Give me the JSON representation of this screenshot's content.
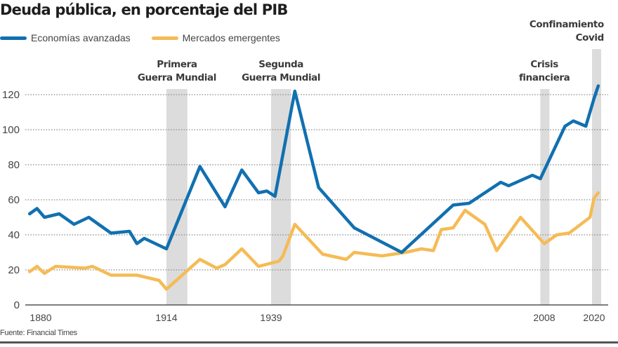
{
  "chart_data": {
    "type": "line",
    "title": "Deuda pública, en porcentaje del PIB",
    "xlabel": "",
    "ylabel": "",
    "ylim": [
      0,
      125
    ],
    "yticks": [
      0,
      20,
      40,
      60,
      80,
      100,
      120
    ],
    "xticks": [
      1880,
      1914,
      1939,
      2008,
      2020
    ],
    "grid": "horizontal dotted",
    "legend_position": "top-left",
    "colors": {
      "Economías avanzadas": "#1170b0",
      "Mercados emergentes": "#f5bb55",
      "band": "#dcdcdc"
    },
    "series": [
      {
        "name": "Economías avanzadas",
        "color": "#1170b0",
        "points": [
          [
            1877,
            52
          ],
          [
            1879,
            55
          ],
          [
            1881,
            50
          ],
          [
            1885,
            52
          ],
          [
            1889,
            46
          ],
          [
            1893,
            50
          ],
          [
            1899,
            41
          ],
          [
            1904,
            42
          ],
          [
            1906,
            35
          ],
          [
            1908,
            38
          ],
          [
            1914,
            32
          ],
          [
            1922,
            79
          ],
          [
            1928,
            56
          ],
          [
            1932,
            77
          ],
          [
            1936,
            64
          ],
          [
            1938,
            65
          ],
          [
            1940,
            62
          ],
          [
            1945,
            122
          ],
          [
            1951,
            67
          ],
          [
            1960,
            44
          ],
          [
            1972,
            30
          ],
          [
            1985,
            57
          ],
          [
            1989,
            58
          ],
          [
            1997,
            70
          ],
          [
            1999,
            68
          ],
          [
            2005,
            74
          ],
          [
            2007,
            72
          ],
          [
            2013,
            102
          ],
          [
            2015,
            105
          ],
          [
            2018,
            102
          ],
          [
            2020,
            118
          ],
          [
            2021,
            125
          ]
        ]
      },
      {
        "name": "Mercados emergentes",
        "color": "#f5bb55",
        "points": [
          [
            1877,
            19
          ],
          [
            1879,
            22
          ],
          [
            1881,
            18
          ],
          [
            1884,
            22
          ],
          [
            1892,
            21
          ],
          [
            1894,
            22
          ],
          [
            1899,
            17
          ],
          [
            1906,
            17
          ],
          [
            1912,
            14
          ],
          [
            1914,
            9
          ],
          [
            1922,
            26
          ],
          [
            1926,
            21
          ],
          [
            1928,
            23
          ],
          [
            1932,
            32
          ],
          [
            1936,
            22
          ],
          [
            1941,
            25
          ],
          [
            1942,
            28
          ],
          [
            1945,
            46
          ],
          [
            1952,
            29
          ],
          [
            1958,
            26
          ],
          [
            1960,
            30
          ],
          [
            1967,
            28
          ],
          [
            1973,
            30
          ],
          [
            1977,
            32
          ],
          [
            1980,
            31
          ],
          [
            1982,
            43
          ],
          [
            1985,
            44
          ],
          [
            1988,
            54
          ],
          [
            1993,
            46
          ],
          [
            1996,
            31
          ],
          [
            2002,
            50
          ],
          [
            2008,
            35
          ],
          [
            2011,
            40
          ],
          [
            2014,
            41
          ],
          [
            2019,
            50
          ],
          [
            2020,
            61
          ],
          [
            2021,
            64
          ]
        ]
      }
    ],
    "annotations": [
      {
        "label_lines": [
          "Primera",
          "Guerra Mundial"
        ],
        "start": 1914,
        "end": 1919
      },
      {
        "label_lines": [
          "Segunda",
          "Guerra Mundial"
        ],
        "start": 1939,
        "end": 1944
      },
      {
        "label_lines": [
          "Crisis",
          "financiera"
        ],
        "start": 2007,
        "end": 2009
      },
      {
        "label_lines": [
          "Confinamiento",
          "Covid"
        ],
        "start": 2019.5,
        "end": 2021.5
      }
    ]
  },
  "legend": {
    "items": [
      {
        "label": "Economías avanzadas",
        "color": "#1170b0"
      },
      {
        "label": "Mercados emergentes",
        "color": "#f5bb55"
      }
    ]
  },
  "source": "Fuente: Financial Times"
}
